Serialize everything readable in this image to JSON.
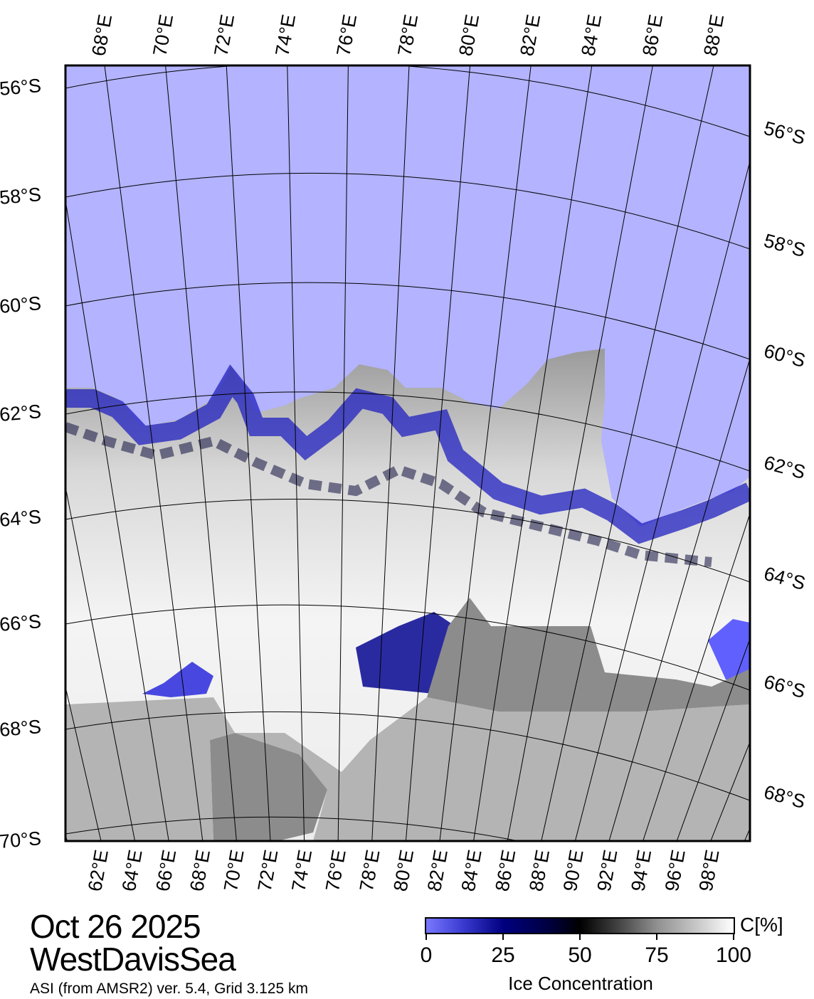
{
  "map": {
    "date": "Oct 26 2025",
    "region": "WestDavisSea",
    "source": "ASI (from AMSR2) ver. 5.4,  Grid 3.125 km",
    "colors": {
      "open_water": "#b3b3ff",
      "land": "#b4b4b4",
      "ice_shelf": "#8c8c8c",
      "ice_high": "#ffffff",
      "ice_mid": "#000000",
      "ice_low": "#000080"
    },
    "top_lon_labels": [
      "68°E",
      "70°E",
      "72°E",
      "74°E",
      "76°E",
      "78°E",
      "80°E",
      "82°E",
      "84°E",
      "86°E",
      "88°E"
    ],
    "bottom_lon_labels": [
      "62°E",
      "64°E",
      "66°E",
      "68°E",
      "70°E",
      "72°E",
      "74°E",
      "76°E",
      "78°E",
      "80°E",
      "82°E",
      "84°E",
      "86°E",
      "88°E",
      "90°E",
      "92°E",
      "94°E",
      "96°E",
      "98°E"
    ],
    "left_lat_labels": [
      "56°S",
      "58°S",
      "60°S",
      "62°S",
      "64°S",
      "66°S",
      "68°S",
      "70°S"
    ],
    "right_lat_labels": [
      "56°S",
      "58°S",
      "60°S",
      "62°S",
      "64°S",
      "66°S",
      "68°S"
    ]
  },
  "colorbar": {
    "title": "Ice Concentration",
    "unit": "C[%]",
    "ticks": [
      "0",
      "25",
      "50",
      "75",
      "100"
    ],
    "range": [
      0,
      100
    ]
  }
}
